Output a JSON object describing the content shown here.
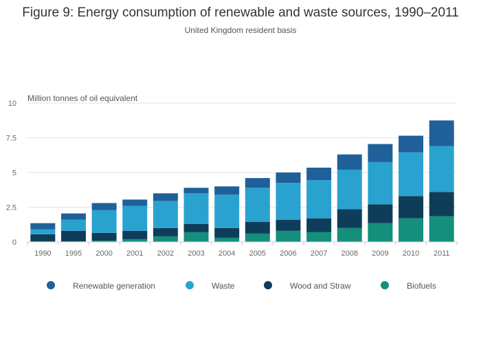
{
  "chart_data": {
    "type": "bar",
    "stacked": true,
    "title": "Figure 9: Energy consumption of renewable and waste sources, 1990–2011",
    "subtitle": "United Kingdom resident basis",
    "ylabel": "Million tonnes of oil equivalent",
    "xlabel": "",
    "ylim": [
      0,
      10
    ],
    "yticks": [
      "0",
      "2.5",
      "5",
      "7.5",
      "10"
    ],
    "ytick_values": [
      0,
      2.5,
      5,
      7.5,
      10
    ],
    "grid": true,
    "legend_position": "bottom",
    "categories": [
      "1990",
      "1995",
      "2000",
      "2001",
      "2002",
      "2003",
      "2004",
      "2005",
      "2006",
      "2007",
      "2008",
      "2009",
      "2010",
      "2011"
    ],
    "series": [
      {
        "name": "Biofuels",
        "color": "#138f7c",
        "values": [
          0.05,
          0.05,
          0.1,
          0.2,
          0.4,
          0.7,
          0.3,
          0.6,
          0.8,
          0.7,
          1.0,
          1.35,
          1.7,
          1.85
        ]
      },
      {
        "name": "Wood and Straw",
        "color": "#0e3d5a",
        "values": [
          0.5,
          0.75,
          0.55,
          0.6,
          0.6,
          0.6,
          0.7,
          0.85,
          0.8,
          1.0,
          1.35,
          1.35,
          1.6,
          1.75
        ]
      },
      {
        "name": "Waste",
        "color": "#2aa2d0",
        "values": [
          0.35,
          0.8,
          1.65,
          1.8,
          1.95,
          2.2,
          2.4,
          2.45,
          2.65,
          2.75,
          2.85,
          3.05,
          3.15,
          3.3
        ]
      },
      {
        "name": "Renewable generation",
        "color": "#20609a",
        "values": [
          0.45,
          0.45,
          0.5,
          0.45,
          0.55,
          0.4,
          0.6,
          0.7,
          0.75,
          0.9,
          1.1,
          1.3,
          1.2,
          1.85
        ]
      }
    ],
    "legend_order": [
      "Renewable generation",
      "Waste",
      "Wood and Straw",
      "Biofuels"
    ]
  }
}
